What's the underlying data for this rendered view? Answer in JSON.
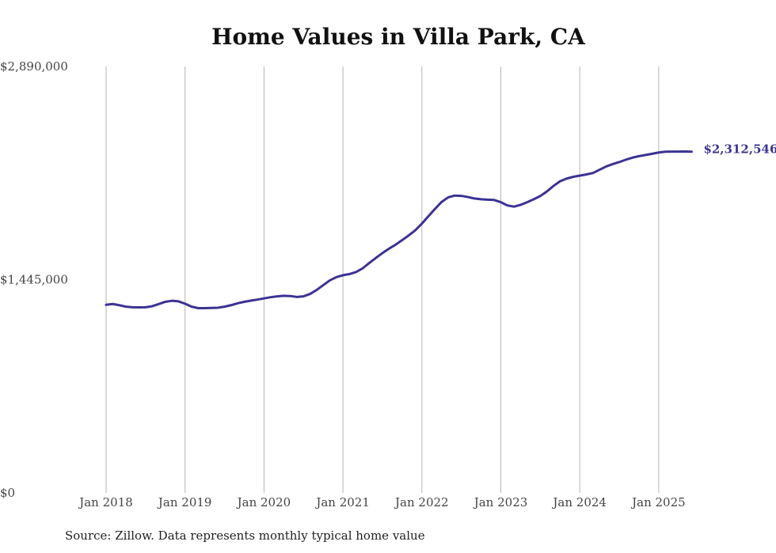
{
  "chart_data": {
    "type": "line",
    "title": "Home Values in Villa Park, CA",
    "xlabel": "",
    "ylabel": "",
    "ylim": [
      0,
      2890000
    ],
    "y_ticks": [
      {
        "value": 0,
        "label": "$0"
      },
      {
        "value": 1445000,
        "label": "$1,445,000"
      },
      {
        "value": 2890000,
        "label": "$2,890,000"
      }
    ],
    "x_ticks": [
      {
        "value": "2018-01",
        "label": "Jan 2018"
      },
      {
        "value": "2019-01",
        "label": "Jan 2019"
      },
      {
        "value": "2020-01",
        "label": "Jan 2020"
      },
      {
        "value": "2021-01",
        "label": "Jan 2021"
      },
      {
        "value": "2022-01",
        "label": "Jan 2022"
      },
      {
        "value": "2023-01",
        "label": "Jan 2023"
      },
      {
        "value": "2024-01",
        "label": "Jan 2024"
      },
      {
        "value": "2025-01",
        "label": "Jan 2025"
      }
    ],
    "xlim": [
      "2018-01",
      "2025-06"
    ],
    "grid": "vertical",
    "line_color": "#3b3392",
    "end_label": "$2,312,546",
    "series": [
      {
        "points": [
          [
            "2018-01",
            1275000
          ],
          [
            "2018-02",
            1280000
          ],
          [
            "2018-03",
            1272000
          ],
          [
            "2018-04",
            1262000
          ],
          [
            "2018-05",
            1258000
          ],
          [
            "2018-06",
            1257000
          ],
          [
            "2018-07",
            1258000
          ],
          [
            "2018-08",
            1265000
          ],
          [
            "2018-09",
            1280000
          ],
          [
            "2018-10",
            1295000
          ],
          [
            "2018-11",
            1302000
          ],
          [
            "2018-12",
            1298000
          ],
          [
            "2019-01",
            1282000
          ],
          [
            "2019-02",
            1262000
          ],
          [
            "2019-03",
            1252000
          ],
          [
            "2019-04",
            1252000
          ],
          [
            "2019-05",
            1253000
          ],
          [
            "2019-06",
            1255000
          ],
          [
            "2019-07",
            1262000
          ],
          [
            "2019-08",
            1272000
          ],
          [
            "2019-09",
            1285000
          ],
          [
            "2019-10",
            1295000
          ],
          [
            "2019-11",
            1303000
          ],
          [
            "2019-12",
            1310000
          ],
          [
            "2020-01",
            1318000
          ],
          [
            "2020-02",
            1326000
          ],
          [
            "2020-03",
            1332000
          ],
          [
            "2020-04",
            1336000
          ],
          [
            "2020-05",
            1334000
          ],
          [
            "2020-06",
            1328000
          ],
          [
            "2020-07",
            1332000
          ],
          [
            "2020-08",
            1348000
          ],
          [
            "2020-09",
            1375000
          ],
          [
            "2020-10",
            1408000
          ],
          [
            "2020-11",
            1440000
          ],
          [
            "2020-12",
            1462000
          ],
          [
            "2021-01",
            1475000
          ],
          [
            "2021-02",
            1483000
          ],
          [
            "2021-03",
            1497000
          ],
          [
            "2021-04",
            1522000
          ],
          [
            "2021-05",
            1558000
          ],
          [
            "2021-06",
            1592000
          ],
          [
            "2021-07",
            1625000
          ],
          [
            "2021-08",
            1655000
          ],
          [
            "2021-09",
            1682000
          ],
          [
            "2021-10",
            1713000
          ],
          [
            "2021-11",
            1745000
          ],
          [
            "2021-12",
            1780000
          ],
          [
            "2022-01",
            1825000
          ],
          [
            "2022-02",
            1875000
          ],
          [
            "2022-03",
            1925000
          ],
          [
            "2022-04",
            1972000
          ],
          [
            "2022-05",
            2003000
          ],
          [
            "2022-06",
            2015000
          ],
          [
            "2022-07",
            2013000
          ],
          [
            "2022-08",
            2005000
          ],
          [
            "2022-09",
            1995000
          ],
          [
            "2022-10",
            1990000
          ],
          [
            "2022-11",
            1987000
          ],
          [
            "2022-12",
            1985000
          ],
          [
            "2023-01",
            1970000
          ],
          [
            "2023-02",
            1948000
          ],
          [
            "2023-03",
            1940000
          ],
          [
            "2023-04",
            1952000
          ],
          [
            "2023-05",
            1970000
          ],
          [
            "2023-06",
            1990000
          ],
          [
            "2023-07",
            2012000
          ],
          [
            "2023-08",
            2043000
          ],
          [
            "2023-09",
            2080000
          ],
          [
            "2023-10",
            2112000
          ],
          [
            "2023-11",
            2130000
          ],
          [
            "2023-12",
            2142000
          ],
          [
            "2024-01",
            2150000
          ],
          [
            "2024-02",
            2158000
          ],
          [
            "2024-03",
            2168000
          ],
          [
            "2024-04",
            2190000
          ],
          [
            "2024-05",
            2212000
          ],
          [
            "2024-06",
            2228000
          ],
          [
            "2024-07",
            2242000
          ],
          [
            "2024-08",
            2258000
          ],
          [
            "2024-09",
            2272000
          ],
          [
            "2024-10",
            2282000
          ],
          [
            "2024-11",
            2290000
          ],
          [
            "2024-12",
            2298000
          ],
          [
            "2025-01",
            2307000
          ],
          [
            "2025-02",
            2312000
          ],
          [
            "2025-03",
            2313000
          ],
          [
            "2025-04",
            2313000
          ],
          [
            "2025-05",
            2313500
          ],
          [
            "2025-06",
            2312546
          ]
        ]
      }
    ]
  },
  "source": "Source: Zillow. Data represents monthly typical home value"
}
